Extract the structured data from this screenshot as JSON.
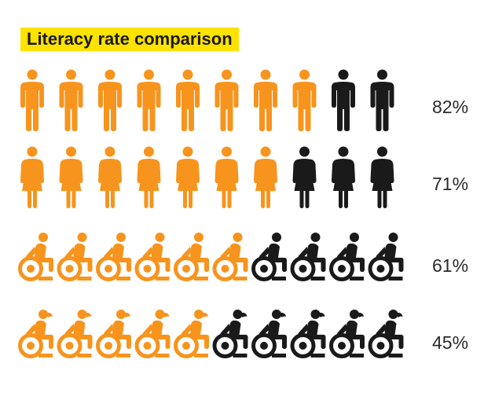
{
  "chart_data": {
    "type": "pictogram",
    "title": "Literacy rate comparison",
    "icons_per_row": 10,
    "colors": {
      "highlight": "#f7941d",
      "rest": "#1a1a1a"
    },
    "rows": [
      {
        "icon": "man-icon",
        "value": 82,
        "label": "82%"
      },
      {
        "icon": "woman-icon",
        "value": 71,
        "label": "71%"
      },
      {
        "icon": "wheelchair-man-icon",
        "value": 61,
        "label": "61%"
      },
      {
        "icon": "wheelchair-woman-icon",
        "value": 45,
        "label": "45%"
      }
    ]
  }
}
